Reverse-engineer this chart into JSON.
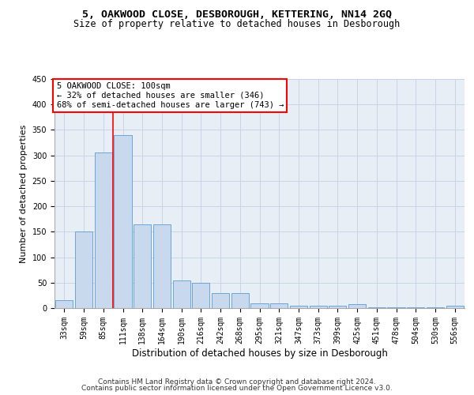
{
  "title": "5, OAKWOOD CLOSE, DESBOROUGH, KETTERING, NN14 2GQ",
  "subtitle": "Size of property relative to detached houses in Desborough",
  "xlabel": "Distribution of detached houses by size in Desborough",
  "ylabel": "Number of detached properties",
  "categories": [
    "33sqm",
    "59sqm",
    "85sqm",
    "111sqm",
    "138sqm",
    "164sqm",
    "190sqm",
    "216sqm",
    "242sqm",
    "268sqm",
    "295sqm",
    "321sqm",
    "347sqm",
    "373sqm",
    "399sqm",
    "425sqm",
    "451sqm",
    "478sqm",
    "504sqm",
    "530sqm",
    "556sqm"
  ],
  "values": [
    15,
    150,
    305,
    340,
    165,
    165,
    55,
    50,
    30,
    30,
    10,
    10,
    5,
    5,
    5,
    8,
    1,
    1,
    1,
    1,
    5
  ],
  "bar_color": "#c9d9ed",
  "bar_edge_color": "#5b9bd5",
  "grid_color": "#c8d4e8",
  "background_color": "#e8eef6",
  "annotation_line1": "5 OAKWOOD CLOSE: 100sqm",
  "annotation_line2": "← 32% of detached houses are smaller (346)",
  "annotation_line3": "68% of semi-detached houses are larger (743) →",
  "annotation_box_color": "white",
  "annotation_box_edge_color": "red",
  "red_line_color": "red",
  "footer_line1": "Contains HM Land Registry data © Crown copyright and database right 2024.",
  "footer_line2": "Contains public sector information licensed under the Open Government Licence v3.0.",
  "ylim": [
    0,
    450
  ],
  "yticks": [
    0,
    50,
    100,
    150,
    200,
    250,
    300,
    350,
    400,
    450
  ],
  "title_fontsize": 9.5,
  "subtitle_fontsize": 8.5,
  "xlabel_fontsize": 8.5,
  "ylabel_fontsize": 8,
  "tick_fontsize": 7,
  "footer_fontsize": 6.5,
  "annotation_fontsize": 7.5
}
